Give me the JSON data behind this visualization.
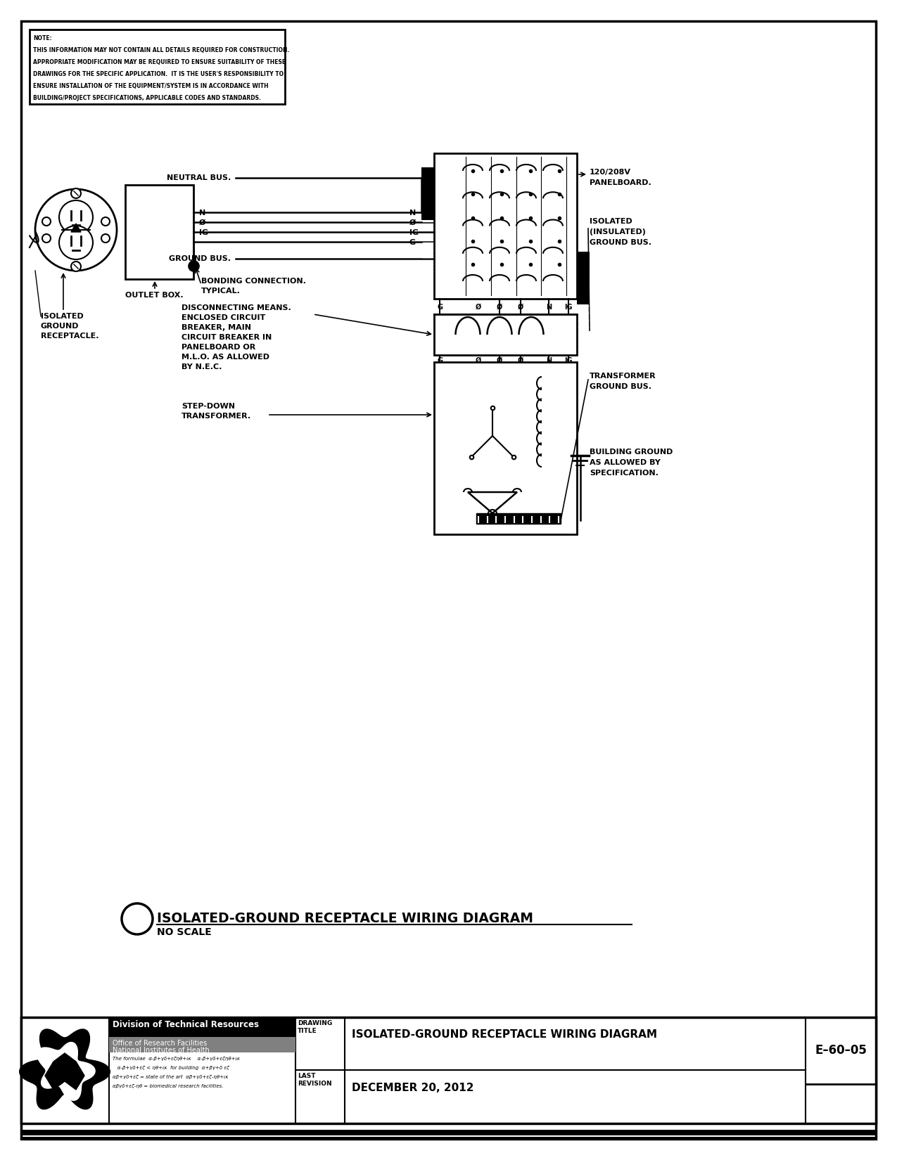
{
  "bg_color": "#ffffff",
  "title": "ISOLATED-GROUND RECEPTACLE WIRING DIAGRAM",
  "subtitle": "NO SCALE",
  "drawing_title": "ISOLATED-GROUND RECEPTACLE WIRING DIAGRAM",
  "drawing_number": "E–60–05",
  "last_revision": "DECEMBER 20, 2012",
  "note_line1": "NOTE:",
  "note_line2": "THIS INFORMATION MAY NOT CONTAIN ALL DETAILS REQUIRED FOR CONSTRUCTION.",
  "note_line3": "APPROPRIATE MODIFICATION MAY BE REQUIRED TO ENSURE SUITABILITY OF THESE",
  "note_line4": "DRAWINGS FOR THE SPECIFIC APPLICATION.  IT IS THE USER'S RESPONSIBILITY TO",
  "note_line5": "ENSURE INSTALLATION OF THE EQUIPMENT/SYSTEM IS IN ACCORDANCE WITH",
  "note_line6": "BUILDING/PROJECT SPECIFICATIONS, APPLICABLE CODES AND STANDARDS.",
  "div_text": "Division of Technical Resources",
  "office1": "Office of Research Facilities",
  "office2": "National Institutes of Health",
  "italic1": "The formulae  α-β+γδ+εζηθ+ικ    α-β+γδ+εζηθ+ικ",
  "italic2": "   α-β+γδ+εζ < ηθ+ικ  for building  α+βγ+δ εζ",
  "italic3": "αβ+γδ+εζ = state of the art  αβ+γδ+εζ-ηθ+ικ",
  "italic4": "αβγδ+εζ-ηθ = biomedical research facilities."
}
